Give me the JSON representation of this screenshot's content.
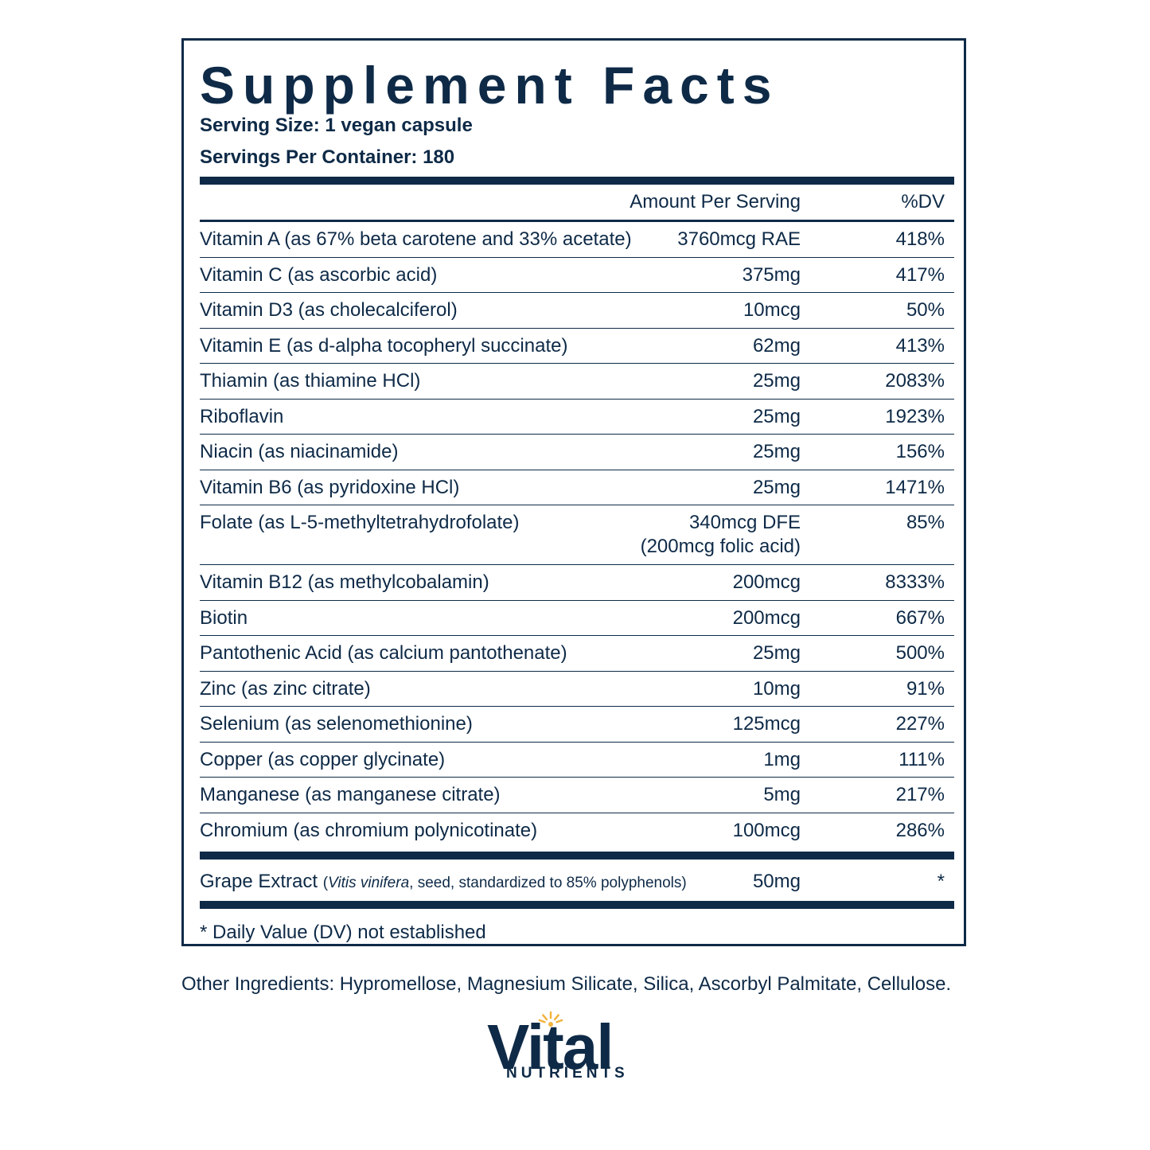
{
  "panel": {
    "title": "Supplement Facts",
    "serving_size": "Serving Size: 1 vegan capsule",
    "servings_per_container": "Servings Per Container: 180",
    "col_amount": "Amount Per Serving",
    "col_dv": "%DV",
    "rows": [
      {
        "name": "Vitamin A (as 67% beta carotene and 33% acetate)",
        "amount": "3760mcg RAE",
        "dv": "418%"
      },
      {
        "name": "Vitamin C (as ascorbic acid)",
        "amount": "375mg",
        "dv": "417%"
      },
      {
        "name": "Vitamin D3 (as cholecalciferol)",
        "amount": "10mcg",
        "dv": "50%"
      },
      {
        "name": "Vitamin E (as d-alpha tocopheryl succinate)",
        "amount": "62mg",
        "dv": "413%"
      },
      {
        "name": "Thiamin (as thiamine HCl)",
        "amount": "25mg",
        "dv": "2083%"
      },
      {
        "name": "Riboflavin",
        "amount": "25mg",
        "dv": "1923%"
      },
      {
        "name": "Niacin (as niacinamide)",
        "amount": "25mg",
        "dv": "156%"
      },
      {
        "name": "Vitamin B6 (as pyridoxine HCl)",
        "amount": "25mg",
        "dv": "1471%"
      },
      {
        "name": "Folate (as L-5-methyltetrahydrofolate)",
        "amount": "340mcg DFE",
        "amount2": "(200mcg folic acid)",
        "dv": "85%"
      },
      {
        "name": "Vitamin B12 (as methylcobalamin)",
        "amount": "200mcg",
        "dv": "8333%"
      },
      {
        "name": "Biotin",
        "amount": "200mcg",
        "dv": "667%"
      },
      {
        "name": "Pantothenic Acid (as calcium pantothenate)",
        "amount": "25mg",
        "dv": "500%"
      },
      {
        "name": "Zinc (as zinc citrate)",
        "amount": "10mg",
        "dv": "91%"
      },
      {
        "name": "Selenium (as selenomethionine)",
        "amount": "125mcg",
        "dv": "227%"
      },
      {
        "name": "Copper (as copper glycinate)",
        "amount": "1mg",
        "dv": "111%"
      },
      {
        "name": "Manganese (as manganese citrate)",
        "amount": "5mg",
        "dv": "217%"
      },
      {
        "name": "Chromium (as chromium polynicotinate)",
        "amount": "100mcg",
        "dv": "286%"
      }
    ],
    "grape": {
      "name": "Grape Extract",
      "note_open": "(",
      "note_italic": "Vitis vinifera",
      "note_rest": ", seed, standardized to 85% polyphenols)",
      "amount": "50mg",
      "dv": "*"
    },
    "footnote": "* Daily Value (DV) not established"
  },
  "other_ingredients": "Other Ingredients: Hypromellose, Magnesium Silicate, Silica, Ascorbyl Palmitate, Cellulose.",
  "logo": {
    "word": "Vital",
    "sub": "NUTRIENTS",
    "sun_color": "#f2b33d"
  },
  "colors": {
    "navy": "#0e2a47"
  }
}
